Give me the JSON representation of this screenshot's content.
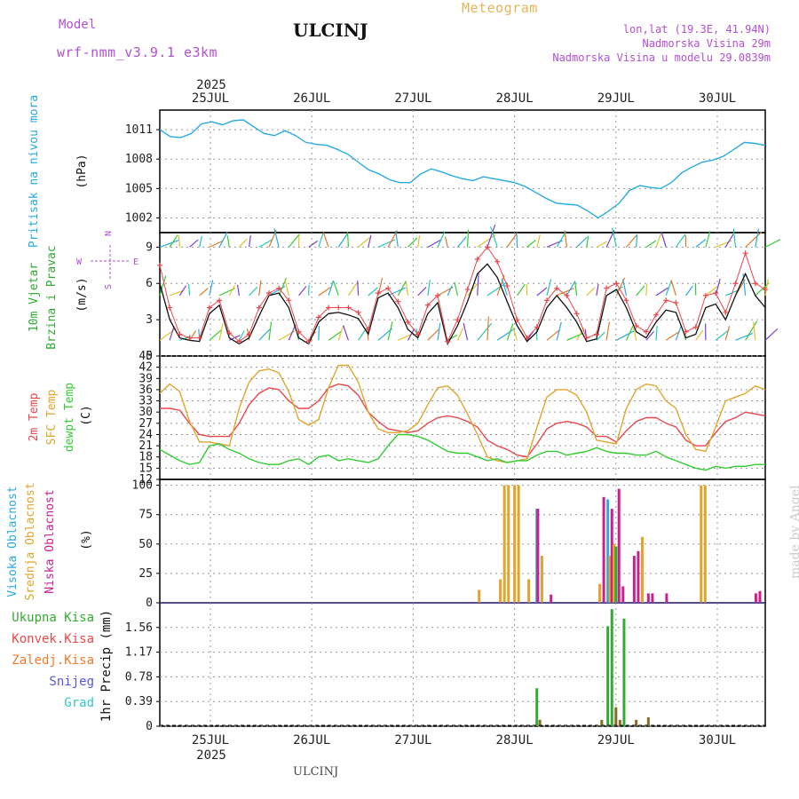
{
  "header": {
    "model_label": "Model",
    "model_name": "wrf-nmm_v3.9.1 e3km",
    "station": "ULCINJ",
    "product": "Meteogram",
    "coords": "lon,lat (19.3E, 41.94N)",
    "elev": "Nadmorska Visina 29m",
    "elev_model": "Nadmorska Visina u modelu 29.0839m"
  },
  "footer": {
    "station": "ULCINJ",
    "credit": "made by Angel"
  },
  "colors": {
    "pressure": "#29aae1",
    "temp2m": "#e8474b",
    "sfc": "#e0a52e",
    "dewpt": "#33cc33",
    "wind": "#111111",
    "high": "#29aae1",
    "mid": "#e0a52e",
    "low": "#cc1f8f",
    "total": "#33aa33",
    "conv": "#e8474b",
    "frz": "#f07a2a",
    "snow": "#5555dd",
    "grad": "#33c9c9",
    "purple": "#b34fd6"
  },
  "chart_data": [
    {
      "type": "line",
      "id": "pressure",
      "ylabel_lines": [
        "Pritisak na nivou mora",
        "(hPa)"
      ],
      "yticks": [
        "1011",
        "1008",
        "1005",
        "1002"
      ],
      "ylim": [
        1000.5,
        1013
      ],
      "top_year": "2025",
      "bottom_year": "2025",
      "x_ticks": [
        "25JUL",
        "26JUL",
        "27JUL",
        "28JUL",
        "29JUL",
        "30JUL"
      ],
      "series": [
        {
          "values": [
            1011.0,
            1010.3,
            1010.2,
            1010.6,
            1011.6,
            1011.8,
            1011.5,
            1011.9,
            1012.0,
            1011.3,
            1010.6,
            1010.4,
            1010.9,
            1010.4,
            1009.7,
            1009.5,
            1009.4,
            1009.0,
            1008.5,
            1007.7,
            1006.9,
            1006.5,
            1005.9,
            1005.6,
            1005.6,
            1006.5,
            1007.0,
            1006.7,
            1006.3,
            1006.0,
            1005.8,
            1006.2,
            1006.0,
            1005.8,
            1005.6,
            1005.2,
            1004.6,
            1004.0,
            1003.5,
            1003.4,
            1003.3,
            1002.7,
            1002.0,
            1002.7,
            1003.5,
            1004.8,
            1005.3,
            1005.1,
            1005.0,
            1005.6,
            1006.6,
            1007.2,
            1007.7,
            1007.9,
            1008.3,
            1009.0,
            1009.7,
            1009.6,
            1009.4
          ]
        }
      ]
    },
    {
      "type": "line",
      "id": "wind",
      "ylabel_lines": [
        "10m Vjetar",
        "Brzina i Pravac",
        "(m/s)"
      ],
      "compass": [
        "N",
        "W",
        "E",
        "S"
      ],
      "yticks": [
        "9",
        "6",
        "3",
        "0"
      ],
      "ylim": [
        0,
        10.2
      ],
      "series": [
        {
          "values": [
            6.0,
            3.0,
            1.5,
            1.3,
            1.2,
            3.5,
            4.2,
            1.5,
            1.0,
            1.5,
            3.3,
            5.0,
            5.2,
            4.0,
            1.5,
            1.0,
            2.8,
            3.5,
            3.6,
            3.4,
            3.1,
            1.8,
            4.8,
            5.2,
            4.0,
            2.2,
            1.5,
            3.5,
            4.4,
            1.0,
            2.5,
            4.5,
            6.8,
            7.6,
            6.5,
            4.5,
            2.5,
            1.2,
            2.0,
            4.0,
            5.0,
            4.0,
            2.8,
            1.2,
            1.4,
            5.0,
            5.5,
            4.0,
            2.0,
            1.5,
            2.8,
            3.8,
            3.6,
            1.5,
            1.8,
            4.0,
            4.3,
            3.0,
            5.0,
            6.8,
            5.0,
            4.0
          ]
        },
        {
          "values": [
            7.5,
            4.0,
            1.8,
            1.5,
            1.5,
            4.0,
            4.6,
            1.9,
            1.2,
            1.8,
            4.0,
            5.2,
            5.6,
            4.6,
            2.0,
            1.2,
            3.2,
            4.0,
            4.0,
            4.0,
            3.6,
            2.2,
            5.2,
            5.6,
            4.5,
            2.8,
            1.8,
            4.2,
            5.0,
            1.2,
            3.0,
            5.5,
            8.0,
            9.0,
            7.8,
            5.8,
            3.0,
            1.5,
            2.4,
            4.6,
            5.6,
            5.0,
            3.5,
            1.5,
            1.8,
            5.6,
            6.0,
            4.6,
            2.5,
            2.0,
            3.4,
            4.6,
            4.4,
            2.0,
            2.4,
            5.0,
            5.2,
            3.6,
            6.0,
            8.5,
            6.0,
            5.5
          ]
        }
      ]
    },
    {
      "type": "line",
      "id": "temp",
      "ylabel_lines": [
        "2m Temp",
        "SFC Temp",
        "dewpt Temp",
        "(C)"
      ],
      "yticks": [
        "45",
        "42",
        "39",
        "36",
        "33",
        "30",
        "27",
        "24",
        "21",
        "18",
        "15",
        "12"
      ],
      "ylim": [
        12,
        45
      ],
      "series": [
        {
          "name": "2m Temp",
          "values": [
            31.0,
            31.0,
            30.5,
            27.0,
            24.0,
            23.5,
            23.5,
            23.5,
            27.0,
            32.0,
            35.0,
            36.5,
            36.0,
            33.0,
            31.0,
            31.0,
            33.0,
            36.5,
            37.5,
            37.0,
            34.5,
            30.0,
            27.5,
            25.5,
            25.0,
            24.5,
            25.0,
            27.0,
            28.5,
            29.0,
            28.5,
            27.5,
            26.0,
            22.5,
            21.0,
            20.0,
            18.5,
            18.0,
            21.5,
            25.5,
            27.0,
            27.5,
            27.0,
            26.0,
            23.5,
            23.5,
            22.0,
            25.0,
            27.5,
            28.5,
            28.5,
            27.0,
            26.0,
            22.5,
            21.0,
            21.0,
            24.5,
            27.5,
            28.5,
            30.0,
            29.5,
            29.0
          ]
        },
        {
          "name": "SFC Temp",
          "values": [
            35.0,
            37.5,
            35.5,
            27.5,
            22.0,
            22.0,
            21.5,
            21.0,
            31.0,
            38.0,
            41.0,
            41.5,
            40.5,
            35.5,
            28.0,
            26.5,
            28.0,
            36.5,
            42.5,
            42.5,
            38.0,
            30.0,
            25.5,
            24.5,
            24.5,
            25.0,
            27.0,
            32.0,
            36.5,
            37.0,
            34.5,
            29.5,
            24.0,
            18.0,
            17.0,
            16.5,
            17.0,
            17.5,
            26.0,
            34.0,
            36.0,
            36.0,
            34.5,
            30.0,
            22.5,
            22.0,
            21.5,
            31.0,
            36.0,
            37.5,
            37.0,
            33.0,
            31.0,
            24.0,
            20.0,
            19.5,
            26.0,
            33.0,
            34.0,
            35.0,
            37.0,
            36.0
          ]
        },
        {
          "name": "dewpt Temp",
          "values": [
            20.0,
            18.5,
            17.0,
            16.0,
            16.5,
            21.0,
            21.5,
            20.0,
            19.0,
            17.5,
            16.5,
            16.0,
            16.0,
            17.0,
            17.5,
            16.0,
            18.0,
            18.5,
            17.0,
            17.5,
            17.0,
            16.5,
            17.5,
            21.0,
            24.0,
            24.0,
            23.5,
            22.5,
            21.0,
            19.5,
            19.0,
            19.0,
            18.0,
            17.0,
            17.5,
            16.5,
            17.0,
            17.0,
            18.5,
            19.5,
            19.5,
            18.5,
            19.0,
            19.5,
            20.5,
            19.5,
            19.0,
            19.0,
            18.5,
            18.5,
            19.5,
            18.0,
            17.0,
            16.0,
            15.0,
            14.5,
            15.5,
            15.0,
            15.5,
            15.5,
            16.0,
            16.0
          ]
        }
      ]
    },
    {
      "type": "bar",
      "id": "clouds",
      "ylabel_lines": [
        "Visoka Oblacnost",
        "Srednja Oblacnost",
        "Niska Oblacnost",
        "(%)"
      ],
      "yticks": [
        "100",
        "75",
        "50",
        "25",
        "0"
      ],
      "ylim": [
        0,
        105
      ],
      "bars": [
        {
          "d": 2.65,
          "v": 11,
          "c": "mid"
        },
        {
          "d": 2.86,
          "v": 20,
          "c": "mid"
        },
        {
          "d": 2.9,
          "v": 100,
          "c": "mid"
        },
        {
          "d": 2.94,
          "v": 100,
          "c": "mid"
        },
        {
          "d": 3.0,
          "v": 100,
          "c": "mid"
        },
        {
          "d": 3.04,
          "v": 100,
          "c": "mid"
        },
        {
          "d": 3.14,
          "v": 20,
          "c": "mid"
        },
        {
          "d": 3.22,
          "v": 80,
          "c": "high"
        },
        {
          "d": 3.23,
          "v": 80,
          "c": "low"
        },
        {
          "d": 3.27,
          "v": 40,
          "c": "mid"
        },
        {
          "d": 3.36,
          "v": 7,
          "c": "low"
        },
        {
          "d": 3.84,
          "v": 16,
          "c": "mid"
        },
        {
          "d": 3.88,
          "v": 90,
          "c": "low"
        },
        {
          "d": 3.92,
          "v": 88,
          "c": "high"
        },
        {
          "d": 3.94,
          "v": 40,
          "c": "mid"
        },
        {
          "d": 3.96,
          "v": 80,
          "c": "low"
        },
        {
          "d": 3.98,
          "v": 50,
          "c": "mid"
        },
        {
          "d": 4.0,
          "v": 48,
          "c": "total"
        },
        {
          "d": 4.03,
          "v": 97,
          "c": "low"
        },
        {
          "d": 4.07,
          "v": 14,
          "c": "low"
        },
        {
          "d": 4.18,
          "v": 40,
          "c": "low"
        },
        {
          "d": 4.22,
          "v": 44,
          "c": "low"
        },
        {
          "d": 4.26,
          "v": 56,
          "c": "mid"
        },
        {
          "d": 4.32,
          "v": 8,
          "c": "low"
        },
        {
          "d": 4.36,
          "v": 8,
          "c": "low"
        },
        {
          "d": 4.5,
          "v": 8,
          "c": "low"
        },
        {
          "d": 4.84,
          "v": 100,
          "c": "mid"
        },
        {
          "d": 4.88,
          "v": 100,
          "c": "mid"
        },
        {
          "d": 5.38,
          "v": 8,
          "c": "low"
        },
        {
          "d": 5.42,
          "v": 10,
          "c": "low"
        }
      ]
    },
    {
      "type": "bar",
      "id": "precip",
      "ylabel_lines": [
        "1hr Precip (mm)"
      ],
      "legend": [
        "Ukupna Kisa",
        "Konvek.Kisa",
        "Zaledj.Kisa",
        "Snijeg",
        "Grad"
      ],
      "yticks": [
        "1.56",
        "1.17",
        "0.78",
        "0.39",
        "0"
      ],
      "ylim": [
        0,
        1.95
      ],
      "x_ticks": [
        "25JUL",
        "26JUL",
        "27JUL",
        "28JUL",
        "29JUL",
        "30JUL"
      ],
      "bars": [
        {
          "d": 3.22,
          "v": 0.6,
          "c": "total"
        },
        {
          "d": 3.25,
          "v": 0.1,
          "c": "brown"
        },
        {
          "d": 3.86,
          "v": 0.1,
          "c": "brown"
        },
        {
          "d": 3.92,
          "v": 1.58,
          "c": "total"
        },
        {
          "d": 3.96,
          "v": 1.85,
          "c": "total"
        },
        {
          "d": 4.0,
          "v": 0.3,
          "c": "brown"
        },
        {
          "d": 4.04,
          "v": 0.1,
          "c": "brown"
        },
        {
          "d": 4.08,
          "v": 1.7,
          "c": "total"
        },
        {
          "d": 4.2,
          "v": 0.1,
          "c": "brown"
        },
        {
          "d": 4.32,
          "v": 0.14,
          "c": "brown"
        }
      ]
    }
  ]
}
